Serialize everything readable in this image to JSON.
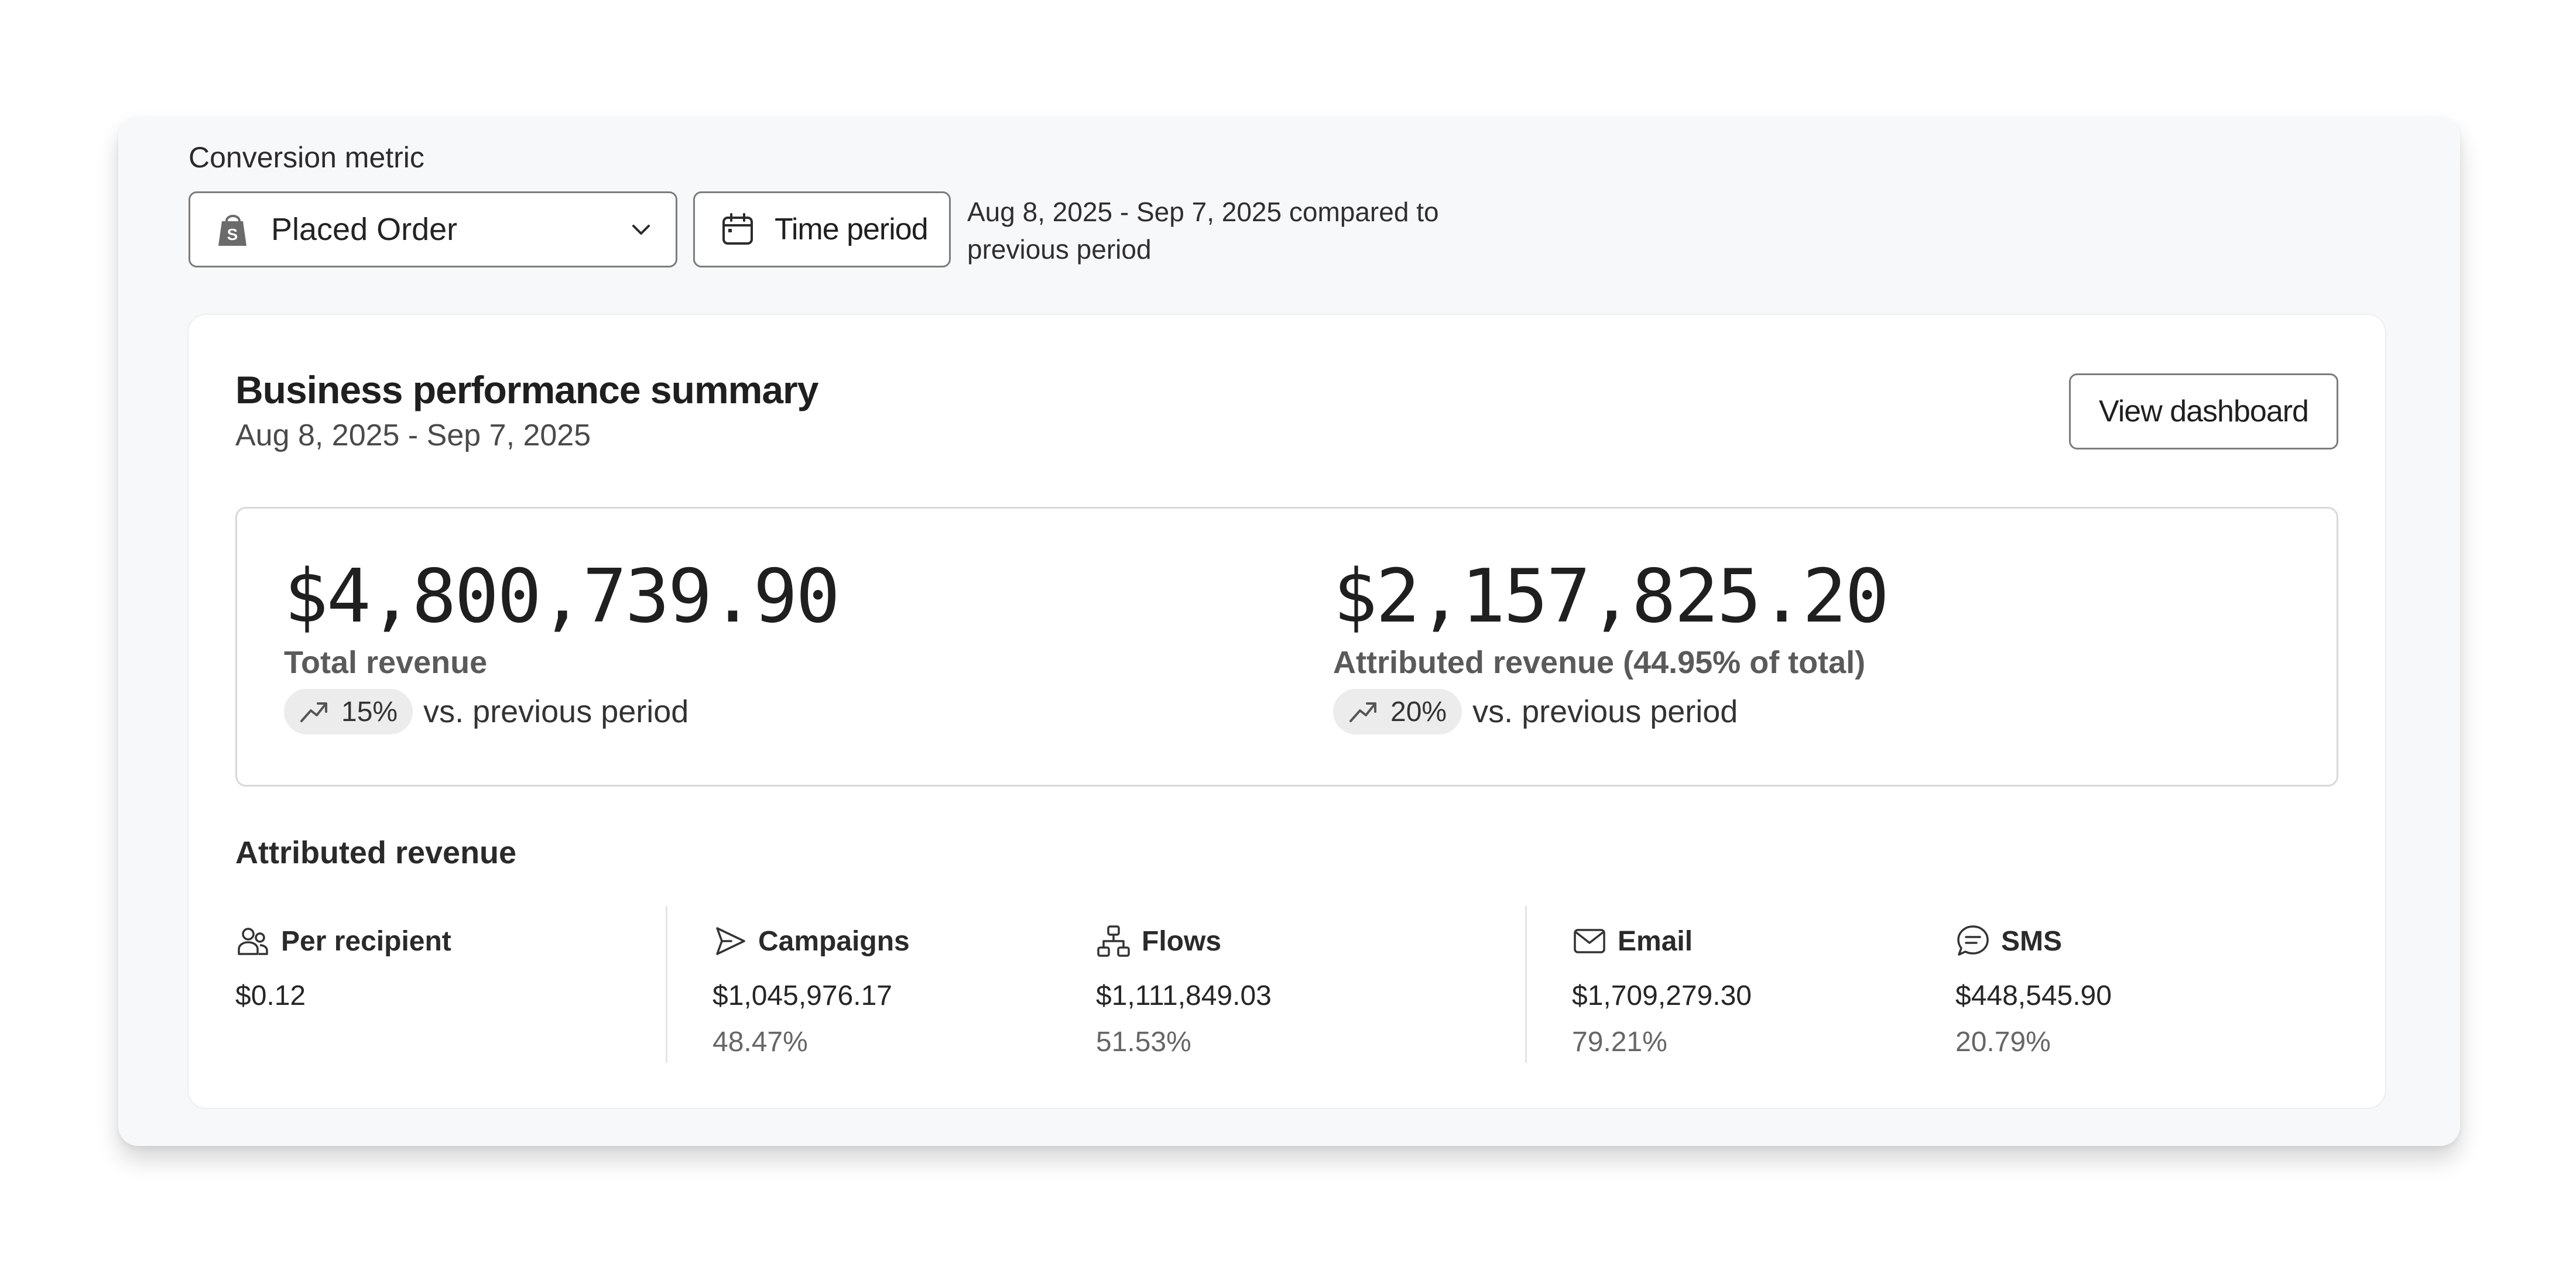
{
  "controls": {
    "metric_label": "Conversion metric",
    "metric_value": "Placed Order",
    "time_button_label": "Time period",
    "range_text": "Aug 8, 2025 - Sep 7, 2025 compared to previous period"
  },
  "summary": {
    "title": "Business performance summary",
    "date_range": "Aug 8, 2025 - Sep 7, 2025",
    "view_button_label": "View dashboard",
    "total": {
      "amount": "$4,800,739.90",
      "label": "Total revenue",
      "change": "15%",
      "vs_text": "vs. previous period"
    },
    "attributed": {
      "amount": "$2,157,825.20",
      "label": "Attributed revenue (44.95% of total)",
      "change": "20%",
      "vs_text": "vs. previous period"
    }
  },
  "attributed_revenue": {
    "heading": "Attributed revenue",
    "per_recipient": {
      "label": "Per recipient",
      "value": "$0.12",
      "icon": "users-icon"
    },
    "campaigns": {
      "label": "Campaigns",
      "value": "$1,045,976.17",
      "percent": "48.47%",
      "icon": "send-icon"
    },
    "flows": {
      "label": "Flows",
      "value": "$1,111,849.03",
      "percent": "51.53%",
      "icon": "flow-icon"
    },
    "email": {
      "label": "Email",
      "value": "$1,709,279.30",
      "percent": "79.21%",
      "icon": "mail-icon"
    },
    "sms": {
      "label": "SMS",
      "value": "$448,545.90",
      "percent": "20.79%",
      "icon": "chat-icon"
    }
  },
  "colors": {
    "panel_bg": "#f7f8f9",
    "card_bg": "#ffffff",
    "border": "#7c7c7c",
    "pill_bg": "#ececec"
  }
}
